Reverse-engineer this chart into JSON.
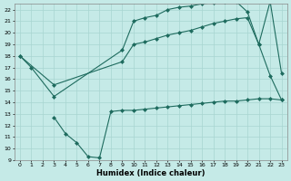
{
  "xlabel": "Humidex (Indice chaleur)",
  "bg_color": "#c5eae7",
  "grid_color": "#a8d5d1",
  "line_color": "#1e6b5e",
  "xlim": [
    -0.5,
    23.5
  ],
  "ylim": [
    9,
    22.5
  ],
  "xticks": [
    0,
    1,
    2,
    3,
    4,
    5,
    6,
    7,
    8,
    9,
    10,
    11,
    12,
    13,
    14,
    15,
    16,
    17,
    18,
    19,
    20,
    21,
    22,
    23
  ],
  "yticks": [
    9,
    10,
    11,
    12,
    13,
    14,
    15,
    16,
    17,
    18,
    19,
    20,
    21,
    22
  ],
  "line1_x": [
    0,
    1,
    3,
    9,
    10,
    11,
    12,
    13,
    14,
    15,
    16,
    17,
    18,
    19,
    20,
    21,
    22,
    23
  ],
  "line1_y": [
    18.0,
    17.0,
    14.5,
    18.5,
    21.0,
    21.3,
    21.5,
    22.0,
    22.2,
    22.3,
    22.5,
    22.6,
    22.7,
    22.7,
    21.8,
    19.0,
    22.7,
    16.5
  ],
  "line2_x": [
    0,
    3,
    9,
    10,
    11,
    12,
    13,
    14,
    15,
    16,
    17,
    18,
    19,
    20,
    21,
    22,
    23
  ],
  "line2_y": [
    18.0,
    15.5,
    17.5,
    19.0,
    19.2,
    19.5,
    19.8,
    20.0,
    20.2,
    20.5,
    20.8,
    21.0,
    21.2,
    21.3,
    19.0,
    16.3,
    14.2
  ],
  "line3_x": [
    3,
    4,
    5,
    6,
    7,
    8,
    9,
    10,
    11,
    12,
    13,
    14,
    15,
    16,
    17,
    18,
    19,
    20,
    21,
    22,
    23
  ],
  "line3_y": [
    12.7,
    11.3,
    10.5,
    9.3,
    9.2,
    13.2,
    13.3,
    13.3,
    13.4,
    13.5,
    13.6,
    13.7,
    13.8,
    13.9,
    14.0,
    14.1,
    14.1,
    14.2,
    14.3,
    14.3,
    14.2
  ],
  "markersize": 2.5
}
